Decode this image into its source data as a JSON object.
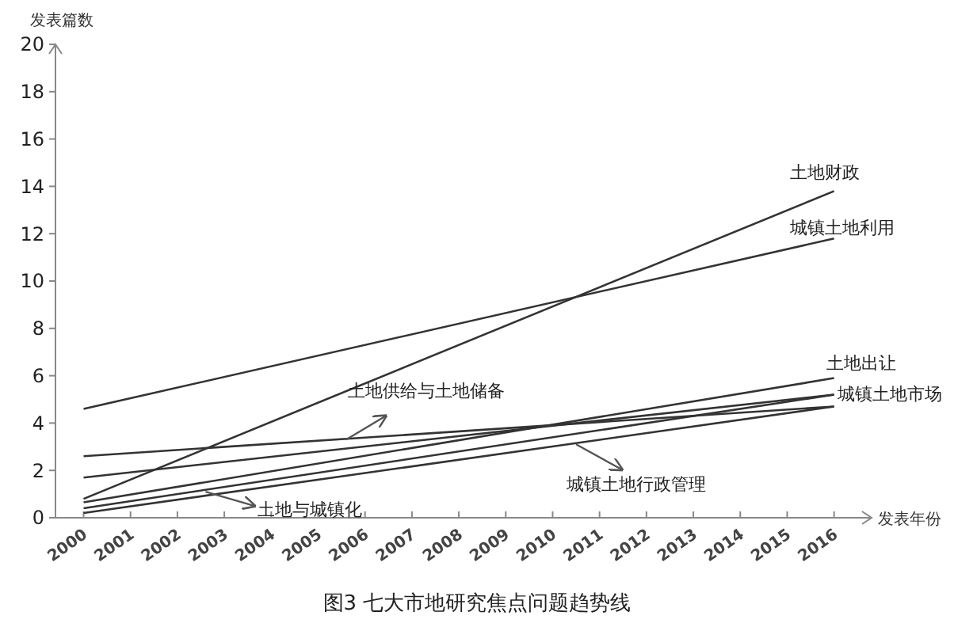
{
  "chart_data": {
    "type": "line",
    "title": "图3  七大市地研究焦点问题趋势线",
    "xlabel": "发表年份",
    "ylabel": "发表篇数",
    "x": [
      2000,
      2016
    ],
    "series": [
      {
        "color": "#333333",
        "values": [
          0.8,
          13.8
        ]
      },
      {
        "color": "#333333",
        "values": [
          4.6,
          11.8
        ]
      },
      {
        "color": "#333333",
        "values": [
          2.6,
          4.7
        ]
      },
      {
        "color": "#333333",
        "values": [
          0.65,
          5.9
        ]
      },
      {
        "color": "#333333",
        "values": [
          1.7,
          5.2
        ]
      },
      {
        "color": "#333333",
        "values": [
          0.2,
          4.7
        ]
      },
      {
        "color": "#333333",
        "values": [
          0.4,
          5.2
        ]
      }
    ],
    "xlim": [
      1999.4,
      2016.8
    ],
    "xticks": [
      2000,
      2001,
      2002,
      2003,
      2004,
      2005,
      2006,
      2007,
      2008,
      2009,
      2010,
      2011,
      2012,
      2013,
      2014,
      2015,
      2016
    ],
    "ylim": [
      0,
      20
    ],
    "yticks": [
      0,
      2,
      4,
      6,
      8,
      10,
      12,
      14,
      16,
      18,
      20
    ],
    "annotations": [
      {
        "text": "土地财政",
        "x": 2016,
        "y": 13.8
      },
      {
        "text": "城镇土地利用",
        "x": 2016,
        "y": 11.8
      },
      {
        "text": "土地供给与土地储备",
        "x": 2005.6,
        "y": 3.3
      },
      {
        "text": "土地出让",
        "x": 2016,
        "y": 5.9
      },
      {
        "text": "城镇土地市场",
        "x": 2016,
        "y": 5.2
      },
      {
        "text": "城镇土地行政管理",
        "x": 2010.5,
        "y": 3.1
      },
      {
        "text": "土地与城镇化",
        "x": 2002.6,
        "y": 1.1
      }
    ],
    "line_style": "solid"
  }
}
